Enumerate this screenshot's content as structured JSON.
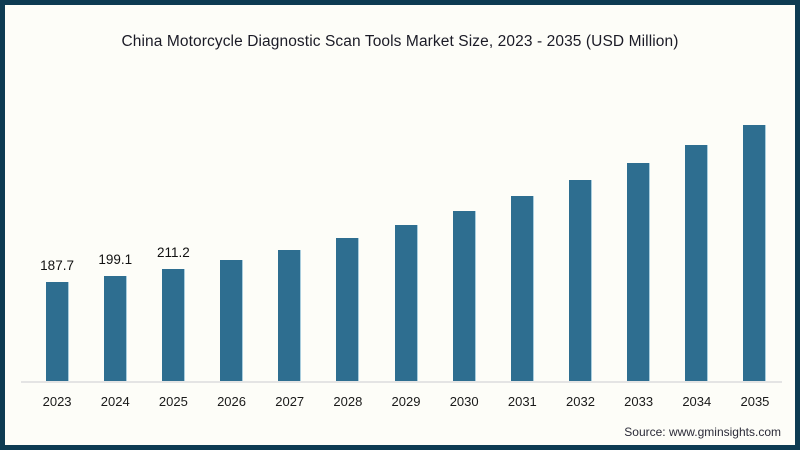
{
  "page": {
    "title": "China Motorcycle Diagnostic Scan Tools Market Size, 2023 - 2035 (USD Million)",
    "source": "Source: www.gminsights.com"
  },
  "colors": {
    "bar": "#2e6e90",
    "frame_border": "#0d3b52",
    "background": "#fdfdf8",
    "axis_line": "#e4e4e4",
    "title_text": "#1b1b26",
    "tick_text": "#1a1a1a"
  },
  "chart_data": {
    "type": "bar",
    "title": "China Motorcycle Diagnostic Scan Tools Market Size, 2023 - 2035 (USD Million)",
    "categories": [
      "2023",
      "2024",
      "2025",
      "2026",
      "2027",
      "2028",
      "2029",
      "2030",
      "2031",
      "2032",
      "2033",
      "2034",
      "2035"
    ],
    "values": [
      187.7,
      199.1,
      211.2,
      229,
      247,
      270,
      294,
      319,
      347,
      377,
      409,
      444,
      481
    ],
    "value_labels_visible": [
      "187.7",
      "199.1",
      "211.2",
      "",
      "",
      "",
      "",
      "",
      "",
      "",
      "",
      "",
      ""
    ],
    "xlabel": "",
    "ylabel": "USD Million",
    "ylim": [
      0,
      500
    ],
    "grid": false,
    "legend": false,
    "bar_color": "#2e6e90",
    "source": "Source: www.gminsights.com"
  }
}
